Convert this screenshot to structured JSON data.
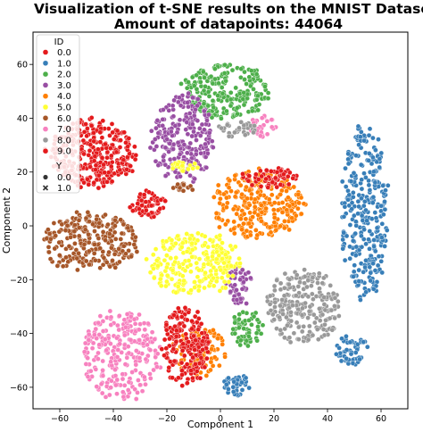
{
  "chart_data": {
    "type": "scatter",
    "title_line1": "Visualization of t-SNE results on the MNIST Dataset",
    "title_line2": "Amount of datapoints: 44064",
    "xlabel": "Component 1",
    "ylabel": "Component 2",
    "xlim": [
      -70,
      70
    ],
    "ylim": [
      -68,
      72
    ],
    "xticks": [
      -60,
      -40,
      -20,
      0,
      20,
      40,
      60
    ],
    "yticks": [
      -60,
      -40,
      -20,
      0,
      20,
      40,
      60
    ],
    "grid": false,
    "legend": {
      "placement": "top-left",
      "hue_title": "ID",
      "hue_entries": [
        {
          "label": "0.0",
          "color": "#e41a1c"
        },
        {
          "label": "1.0",
          "color": "#377eb8"
        },
        {
          "label": "2.0",
          "color": "#4daf4a"
        },
        {
          "label": "3.0",
          "color": "#984ea3"
        },
        {
          "label": "4.0",
          "color": "#ff7f00"
        },
        {
          "label": "5.0",
          "color": "#ffff33"
        },
        {
          "label": "6.0",
          "color": "#a65628"
        },
        {
          "label": "7.0",
          "color": "#f781bf"
        },
        {
          "label": "8.0",
          "color": "#999999"
        },
        {
          "label": "9.0",
          "color": "#e41a1c"
        }
      ],
      "style_title": "Y",
      "style_entries": [
        {
          "label": "0.0",
          "marker": "circle"
        },
        {
          "label": "1.0",
          "marker": "x"
        }
      ]
    },
    "clusters": [
      {
        "id": "0.0",
        "color": "#e41a1c",
        "cx": -48,
        "cy": 27,
        "rx": 17,
        "ry": 13,
        "n": 340
      },
      {
        "id": "1.0",
        "color": "#377eb8",
        "cx": 54,
        "cy": 5,
        "rx": 9,
        "ry": 33,
        "n": 300
      },
      {
        "id": "1.0",
        "color": "#377eb8",
        "cx": 49,
        "cy": -46,
        "rx": 6,
        "ry": 6,
        "n": 50
      },
      {
        "id": "1.0",
        "color": "#377eb8",
        "cx": 6,
        "cy": -59,
        "rx": 5,
        "ry": 4,
        "n": 40
      },
      {
        "id": "2.0",
        "color": "#4daf4a",
        "cx": 2,
        "cy": 50,
        "rx": 17,
        "ry": 10,
        "n": 220
      },
      {
        "id": "2.0",
        "color": "#4daf4a",
        "cx": 10,
        "cy": -38,
        "rx": 6,
        "ry": 7,
        "n": 60
      },
      {
        "id": "3.0",
        "color": "#984ea3",
        "cx": -14,
        "cy": 32,
        "rx": 12,
        "ry": 17,
        "n": 230
      },
      {
        "id": "3.0",
        "color": "#984ea3",
        "cx": 7,
        "cy": -22,
        "rx": 5,
        "ry": 8,
        "n": 50
      },
      {
        "id": "4.0",
        "color": "#ff7f00",
        "cx": 14,
        "cy": 8,
        "rx": 18,
        "ry": 13,
        "n": 280
      },
      {
        "id": "4.0",
        "color": "#ff7f00",
        "cx": -8,
        "cy": -47,
        "rx": 10,
        "ry": 10,
        "n": 80
      },
      {
        "id": "5.0",
        "color": "#ffff33",
        "cx": -10,
        "cy": -14,
        "rx": 18,
        "ry": 12,
        "n": 260
      },
      {
        "id": "5.0",
        "color": "#ffff33",
        "cx": -13,
        "cy": 22,
        "rx": 5,
        "ry": 2,
        "n": 20
      },
      {
        "id": "6.0",
        "color": "#a65628",
        "cx": -49,
        "cy": -6,
        "rx": 19,
        "ry": 11,
        "n": 260
      },
      {
        "id": "6.0",
        "color": "#a65628",
        "cx": -14,
        "cy": 14,
        "rx": 4,
        "ry": 2,
        "n": 15
      },
      {
        "id": "7.0",
        "color": "#f781bf",
        "cx": -37,
        "cy": -48,
        "rx": 15,
        "ry": 17,
        "n": 260
      },
      {
        "id": "7.0",
        "color": "#f781bf",
        "cx": 16,
        "cy": 37,
        "rx": 5,
        "ry": 4,
        "n": 30
      },
      {
        "id": "8.0",
        "color": "#999999",
        "cx": 31,
        "cy": -30,
        "rx": 14,
        "ry": 14,
        "n": 230
      },
      {
        "id": "8.0",
        "color": "#999999",
        "cx": 6,
        "cy": 36,
        "rx": 7,
        "ry": 3,
        "n": 30
      },
      {
        "id": "9.0",
        "color": "#e41a1c",
        "cx": -13,
        "cy": -45,
        "rx": 9,
        "ry": 15,
        "n": 200
      },
      {
        "id": "9.0",
        "color": "#e41a1c",
        "cx": -27,
        "cy": 8,
        "rx": 7,
        "ry": 5,
        "n": 60
      },
      {
        "id": "9.0",
        "color": "#e41a1c",
        "cx": 19,
        "cy": 18,
        "rx": 11,
        "ry": 4,
        "n": 60
      }
    ]
  }
}
